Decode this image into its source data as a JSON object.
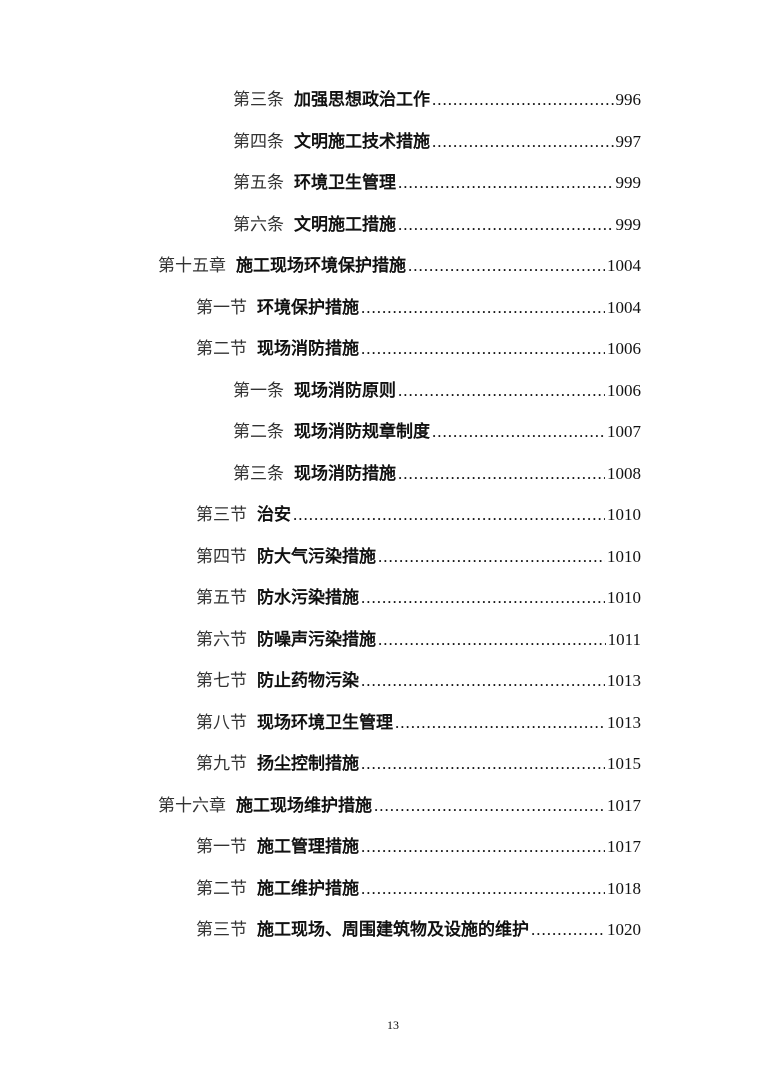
{
  "toc": [
    {
      "level": 3,
      "prefix": "第三条",
      "title": "加强思想政治工作",
      "page": "996"
    },
    {
      "level": 3,
      "prefix": "第四条",
      "title": "文明施工技术措施",
      "page": "997"
    },
    {
      "level": 3,
      "prefix": "第五条",
      "title": "环境卫生管理",
      "page": "999"
    },
    {
      "level": 3,
      "prefix": "第六条",
      "title": "文明施工措施",
      "page": "999"
    },
    {
      "level": 1,
      "prefix": "第十五章",
      "title": "施工现场环境保护措施",
      "page": "1004"
    },
    {
      "level": 2,
      "prefix": "第一节",
      "title": "环境保护措施",
      "page": "1004"
    },
    {
      "level": 2,
      "prefix": "第二节",
      "title": "现场消防措施",
      "page": "1006"
    },
    {
      "level": 3,
      "prefix": "第一条",
      "title": "现场消防原则",
      "page": "1006"
    },
    {
      "level": 3,
      "prefix": "第二条",
      "title": "现场消防规章制度",
      "page": "1007"
    },
    {
      "level": 3,
      "prefix": "第三条",
      "title": "现场消防措施",
      "page": "1008"
    },
    {
      "level": 2,
      "prefix": "第三节",
      "title": "治安",
      "page": "1010"
    },
    {
      "level": 2,
      "prefix": "第四节",
      "title": "防大气污染措施",
      "page": "1010"
    },
    {
      "level": 2,
      "prefix": "第五节",
      "title": "防水污染措施",
      "page": "1010"
    },
    {
      "level": 2,
      "prefix": "第六节",
      "title": "防噪声污染措施",
      "page": "1011"
    },
    {
      "level": 2,
      "prefix": "第七节",
      "title": "防止药物污染",
      "page": "1013"
    },
    {
      "level": 2,
      "prefix": "第八节",
      "title": "现场环境卫生管理",
      "page": "1013"
    },
    {
      "level": 2,
      "prefix": "第九节",
      "title": "扬尘控制措施",
      "page": "1015"
    },
    {
      "level": 1,
      "prefix": "第十六章",
      "title": "施工现场维护措施",
      "page": "1017"
    },
    {
      "level": 2,
      "prefix": "第一节",
      "title": "施工管理措施",
      "page": "1017"
    },
    {
      "level": 2,
      "prefix": "第二节",
      "title": "施工维护措施",
      "page": "1018"
    },
    {
      "level": 2,
      "prefix": "第三节",
      "title": "施工现场、周围建筑物及设施的维护",
      "page": "1020"
    }
  ],
  "footer": {
    "page_number": "13"
  }
}
